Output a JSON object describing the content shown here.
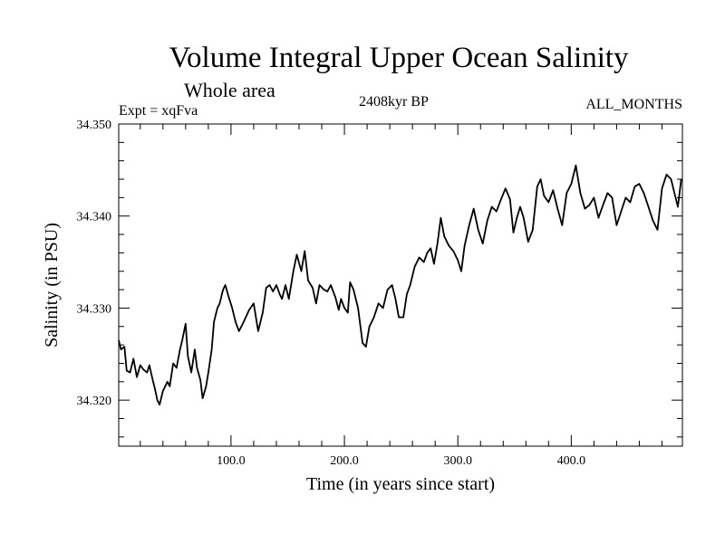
{
  "chart_data": {
    "type": "line",
    "title": "Volume Integral Upper Ocean Salinity",
    "subtitle": "Whole area",
    "annotations": {
      "left": "Expt = xqFva",
      "center": "2408kyr BP",
      "right": "ALL_MONTHS"
    },
    "xlabel": "Time (in years since start)",
    "ylabel": "Salinity (in PSU)",
    "xlim": [
      1,
      498
    ],
    "ylim": [
      34.315,
      34.35
    ],
    "xticks": [
      100,
      200,
      300,
      400
    ],
    "xtick_labels": [
      "100.0",
      "200.0",
      "300.0",
      "400.0"
    ],
    "yticks": [
      34.32,
      34.33,
      34.34,
      34.35
    ],
    "ytick_labels": [
      "34.320",
      "34.330",
      "34.340",
      "34.350"
    ],
    "grid": false,
    "series": [
      {
        "name": "Salinity",
        "x": [
          1,
          3,
          6,
          8,
          11,
          14,
          17,
          20,
          23,
          26,
          28,
          31,
          33,
          35,
          37,
          40,
          44,
          46,
          49,
          52,
          55,
          57,
          60,
          62,
          65,
          68,
          70,
          73,
          75,
          78,
          80,
          83,
          85,
          88,
          90,
          93,
          95,
          98,
          101,
          104,
          107,
          110,
          113,
          116,
          120,
          124,
          128,
          131,
          134,
          137,
          140,
          143,
          145,
          148,
          151,
          155,
          158,
          162,
          165,
          168,
          172,
          175,
          178,
          182,
          185,
          188,
          192,
          195,
          197,
          200,
          203,
          205,
          208,
          212,
          216,
          219,
          222,
          226,
          230,
          234,
          238,
          242,
          245,
          248,
          252,
          255,
          258,
          262,
          266,
          270,
          273,
          276,
          279,
          282,
          285,
          288,
          292,
          296,
          300,
          303,
          306,
          310,
          314,
          318,
          322,
          326,
          330,
          334,
          338,
          342,
          346,
          349,
          352,
          355,
          358,
          362,
          366,
          370,
          373,
          376,
          380,
          384,
          388,
          392,
          396,
          400,
          404,
          408,
          412,
          416,
          420,
          424,
          428,
          432,
          436,
          440,
          444,
          448,
          452,
          456,
          460,
          464,
          468,
          472,
          476,
          480,
          484,
          488,
          491,
          494,
          497
        ],
        "y": [
          34.3265,
          34.3255,
          34.3258,
          34.3232,
          34.323,
          34.3245,
          34.3225,
          34.3238,
          34.3233,
          34.323,
          34.3238,
          34.3222,
          34.3212,
          34.32,
          34.3195,
          34.321,
          34.322,
          34.3215,
          34.324,
          34.3235,
          34.3255,
          34.3265,
          34.3283,
          34.3248,
          34.323,
          34.3255,
          34.3235,
          34.3222,
          34.3202,
          34.3215,
          34.323,
          34.3255,
          34.3285,
          34.33,
          34.3305,
          34.332,
          34.3325,
          34.3312,
          34.33,
          34.3285,
          34.3275,
          34.3282,
          34.329,
          34.3298,
          34.3305,
          34.3275,
          34.3295,
          34.3322,
          34.3325,
          34.3318,
          34.3325,
          34.3315,
          34.331,
          34.3325,
          34.331,
          34.334,
          34.3358,
          34.334,
          34.3362,
          34.333,
          34.3322,
          34.3305,
          34.3325,
          34.332,
          34.3318,
          34.3325,
          34.3312,
          34.3298,
          34.331,
          34.33,
          34.3295,
          34.3328,
          34.332,
          34.33,
          34.3262,
          34.3258,
          34.328,
          34.329,
          34.3305,
          34.33,
          34.332,
          34.3325,
          34.331,
          34.329,
          34.329,
          34.3315,
          34.3325,
          34.3345,
          34.3355,
          34.335,
          34.336,
          34.3365,
          34.3348,
          34.337,
          34.3398,
          34.3378,
          34.3368,
          34.3362,
          34.3352,
          34.334,
          34.3368,
          34.339,
          34.3408,
          34.3385,
          34.337,
          34.3395,
          34.341,
          34.3405,
          34.3418,
          34.343,
          34.3418,
          34.3382,
          34.3398,
          34.341,
          34.3398,
          34.3372,
          34.3385,
          34.3432,
          34.344,
          34.3422,
          34.3415,
          34.3428,
          34.3408,
          34.339,
          34.3425,
          34.3435,
          34.3455,
          34.3425,
          34.3408,
          34.3412,
          34.342,
          34.3398,
          34.3412,
          34.3425,
          34.342,
          34.339,
          34.3405,
          34.342,
          34.3415,
          34.3432,
          34.3435,
          34.3425,
          34.341,
          34.3395,
          34.3385,
          34.343,
          34.3445,
          34.344,
          34.3425,
          34.341,
          34.344
        ]
      }
    ]
  }
}
